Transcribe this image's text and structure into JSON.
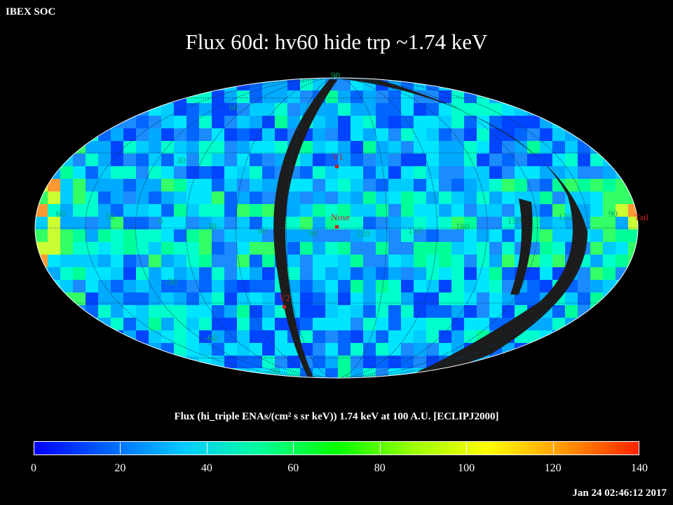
{
  "header": {
    "org": "IBEX SOC",
    "title": "Flux   60d: hv60 hide trp ~1.74 keV",
    "timestamp": "Jan 24 02:46:12 2017"
  },
  "map": {
    "projection": "Mollweide (ecliptic J2000, centered on Nose)",
    "ellipse_border_color": "#ffffff",
    "gap_color": "#1c1c1c",
    "grid_labels": {
      "latitude": [
        "90",
        "60",
        "30",
        "-30",
        "-60",
        "-90"
      ],
      "longitude": [
        "60",
        "30",
        "0",
        "30",
        "60",
        "90",
        "120",
        "150",
        "180",
        "150",
        "120",
        "90"
      ]
    },
    "markers": [
      {
        "name": "V1",
        "color": "#cc2222"
      },
      {
        "name": "Nose",
        "color": "#cc2222"
      },
      {
        "name": "V2",
        "color": "#cc2222"
      },
      {
        "name": "Tail",
        "color": "#cc2222"
      }
    ]
  },
  "colorbar": {
    "title": "Flux (hi_triple ENAs/(cm² s sr keV))  1.74 keV at 100 A.U. [ECLIPJ2000]",
    "min": 0,
    "max": 140,
    "ticks": [
      "0",
      "20",
      "40",
      "60",
      "80",
      "100",
      "120",
      "140"
    ],
    "colors": [
      "#0000ff",
      "#0066ff",
      "#00ccff",
      "#00ff99",
      "#00ff00",
      "#99ff00",
      "#ffff00",
      "#ff9900",
      "#ff2200"
    ]
  }
}
